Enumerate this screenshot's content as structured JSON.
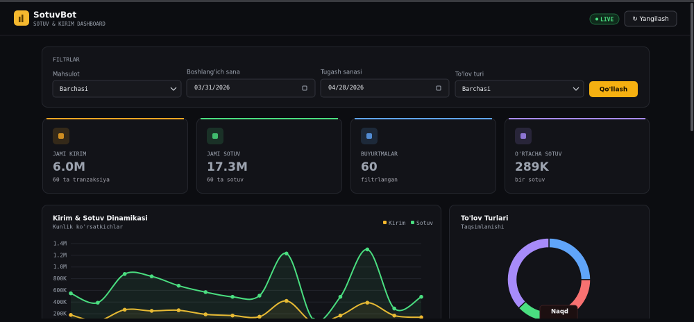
{
  "header": {
    "title": "SotuvBot",
    "subtitle": "SOTUV & KIRIM DASHBOARD",
    "live": "LIVE",
    "refresh": "↻ Yangilash"
  },
  "filters": {
    "title": "FILTRLAR",
    "fields": [
      {
        "label": "Mahsulot",
        "value": "Barchasi"
      },
      {
        "label": "Boshlang'ich sana",
        "value": "03/31/2026"
      },
      {
        "label": "Tugash sanasi",
        "value": "04/28/2026"
      },
      {
        "label": "To'lov turi",
        "value": "Barchasi"
      }
    ],
    "apply": "Qo'llash"
  },
  "cards": [
    {
      "label": "JAMI KIRIM",
      "value": "6.0M",
      "note": "60 ta tranzaksiya",
      "color": "#f5a623"
    },
    {
      "label": "JAMI SOTUV",
      "value": "17.3M",
      "note": "60 ta sotuv",
      "color": "#4ade80"
    },
    {
      "label": "BUYURTMALAR",
      "value": "60",
      "note": "filtrlangan",
      "color": "#60a5fa"
    },
    {
      "label": "O'RTACHA SOTUV",
      "value": "289K",
      "note": "bir sotuv",
      "color": "#a78bfa"
    }
  ],
  "line_chart": {
    "type": "line",
    "title": "Kirim & Sotuv Dinamikasi",
    "subtitle": "Kunlik ko'rsatkichlar",
    "ylim": [
      0,
      1400000
    ],
    "yticks": [
      {
        "value": 200000,
        "label": "200K"
      },
      {
        "value": 400000,
        "label": "400K"
      },
      {
        "value": 600000,
        "label": "600K"
      },
      {
        "value": 800000,
        "label": "800K"
      },
      {
        "value": 1000000,
        "label": "1.0M"
      },
      {
        "value": 1200000,
        "label": "1.2M"
      },
      {
        "value": 1400000,
        "label": "1.4M"
      }
    ],
    "grid": true,
    "series": [
      {
        "name": "Kirim",
        "color": "#f5b82e",
        "values": [
          180000,
          80000,
          270000,
          250000,
          260000,
          190000,
          170000,
          150000,
          420000,
          50000,
          170000,
          390000,
          170000,
          140000
        ]
      },
      {
        "name": "Sotuv",
        "color": "#4ade80",
        "values": [
          550000,
          390000,
          880000,
          840000,
          680000,
          570000,
          490000,
          510000,
          1230000,
          100000,
          490000,
          1300000,
          290000,
          490000
        ]
      }
    ]
  },
  "donut_chart": {
    "type": "pie",
    "title": "To'lov Turlari",
    "subtitle": "Taqsimlanishi",
    "values": [
      25,
      20,
      18,
      37
    ],
    "colors": [
      "#60a5fa",
      "#f87171",
      "#4ade80",
      "#a78bfa"
    ],
    "tooltip": "Naqd"
  }
}
